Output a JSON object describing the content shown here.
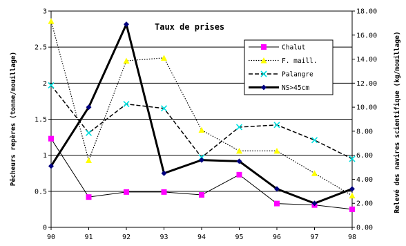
{
  "chart_data": {
    "type": "line",
    "title": "Taux de prises",
    "ylabel_left": "Pêcheurs repères (tonne/mouillage)",
    "ylabel_right": "Relevé des navires scientifique (kg/mouillage)",
    "xlabel": "",
    "x": [
      90,
      91,
      92,
      93,
      94,
      95,
      96,
      97,
      98
    ],
    "x_ticks": [
      "90",
      "91",
      "92",
      "93",
      "94",
      "95",
      "96",
      "97",
      "98"
    ],
    "ylim_left": [
      0,
      3
    ],
    "ylim_right": [
      0,
      18
    ],
    "y_ticks_left": [
      "0",
      "0.5",
      "1",
      "1.5",
      "2",
      "2.5",
      "3"
    ],
    "y_ticks_right": [
      "0.00",
      "2.00",
      "4.00",
      "6.00",
      "8.00",
      "10.00",
      "12.00",
      "14.00",
      "16.00",
      "18.00"
    ],
    "grid": "horizontal",
    "legend_position": "top-right",
    "series": [
      {
        "name": "Chalut",
        "axis": "left",
        "color": "#000000",
        "marker": "square",
        "marker_color": "#ff00ff",
        "line": "solid-thin",
        "values": [
          1.23,
          0.42,
          0.49,
          0.49,
          0.45,
          0.73,
          0.33,
          0.31,
          0.25
        ]
      },
      {
        "name": "F. maill.",
        "axis": "left",
        "color": "#000000",
        "marker": "triangle",
        "marker_color": "#ffff00",
        "line": "dotted",
        "values": [
          2.86,
          0.93,
          2.31,
          2.35,
          1.35,
          1.06,
          1.06,
          0.75,
          0.44
        ]
      },
      {
        "name": "Palangre",
        "axis": "left",
        "color": "#000000",
        "marker": "x",
        "marker_color": "#00e0e0",
        "line": "dashed",
        "values": [
          1.97,
          1.31,
          1.71,
          1.65,
          0.97,
          1.39,
          1.42,
          1.21,
          0.95
        ]
      },
      {
        "name": "NS>45cm",
        "axis": "right",
        "color": "#000000",
        "marker": "diamond",
        "marker_color": "#00007f",
        "line": "solid-thick",
        "values": [
          5.1,
          10.0,
          16.9,
          4.5,
          5.6,
          5.5,
          3.2,
          2.0,
          3.2
        ]
      }
    ]
  }
}
